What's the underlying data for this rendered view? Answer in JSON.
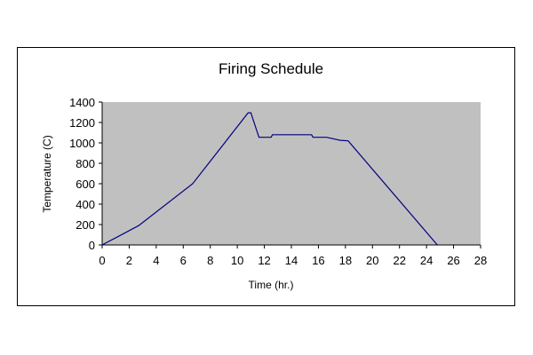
{
  "chart_data": {
    "type": "line",
    "title": "Firing Schedule",
    "xlabel": "Time (hr.)",
    "ylabel": "Temperature (C)",
    "xlim": [
      0,
      28
    ],
    "ylim": [
      0,
      1400
    ],
    "x_ticks": [
      "0",
      "2",
      "4",
      "6",
      "8",
      "10",
      "12",
      "14",
      "16",
      "18",
      "20",
      "22",
      "24",
      "26",
      "28"
    ],
    "y_ticks": [
      "0",
      "200",
      "400",
      "600",
      "800",
      "1000",
      "1200",
      "1400"
    ],
    "grid": false,
    "legend": "none",
    "plot_background": "#C0C0C0",
    "series": [
      {
        "color": "#000080",
        "points": [
          {
            "x": 0,
            "y": 0
          },
          {
            "x": 2.7,
            "y": 190
          },
          {
            "x": 6.7,
            "y": 600
          },
          {
            "x": 10.8,
            "y": 1295
          },
          {
            "x": 11.0,
            "y": 1295
          },
          {
            "x": 11.6,
            "y": 1055
          },
          {
            "x": 12.5,
            "y": 1055
          },
          {
            "x": 12.6,
            "y": 1080
          },
          {
            "x": 15.5,
            "y": 1080
          },
          {
            "x": 15.6,
            "y": 1055
          },
          {
            "x": 16.6,
            "y": 1055
          },
          {
            "x": 17.6,
            "y": 1025
          },
          {
            "x": 18.2,
            "y": 1020
          },
          {
            "x": 24.8,
            "y": 0
          }
        ]
      }
    ]
  }
}
